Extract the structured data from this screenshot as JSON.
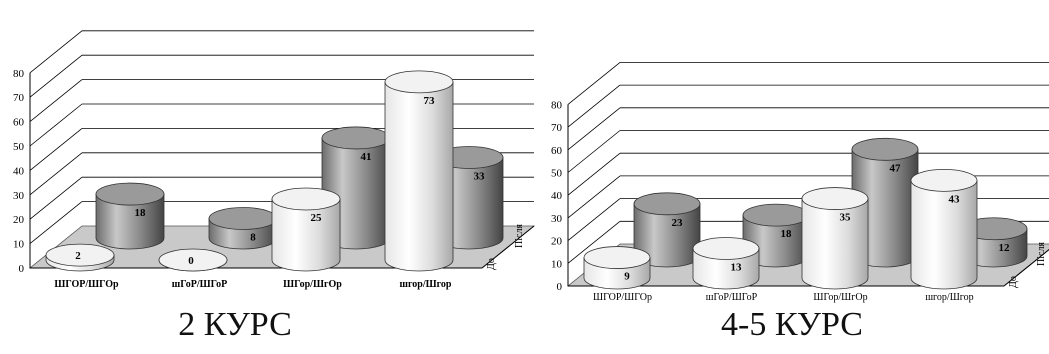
{
  "chart_data": [
    {
      "type": "bar",
      "style": "3d-cylinder",
      "caption": "2 КУРС",
      "categories": [
        "ШГОР/ШГОр",
        "шГоР/ШГоР",
        "ШГор/ШгОр",
        "шгор/Шгор"
      ],
      "depth_labels": [
        "До",
        "Після"
      ],
      "series": [
        {
          "name": "До",
          "values": [
            2,
            0,
            25,
            73
          ]
        },
        {
          "name": "Після",
          "values": [
            18,
            8,
            41,
            33
          ]
        }
      ],
      "yticks": [
        "0",
        "10",
        "20",
        "30",
        "40",
        "50",
        "60",
        "70",
        "80"
      ],
      "ylim": [
        0,
        80
      ],
      "grid": true
    },
    {
      "type": "bar",
      "style": "3d-cylinder",
      "caption": "4-5 КУРС",
      "categories": [
        "ШГОР/ШГОр",
        "шГоР/ШГоР",
        "ШГор/ШгОр",
        "шгор/Шгор"
      ],
      "depth_labels": [
        "До",
        "Після"
      ],
      "series": [
        {
          "name": "До",
          "values": [
            9,
            13,
            35,
            43
          ]
        },
        {
          "name": "Після",
          "values": [
            23,
            18,
            47,
            12
          ]
        }
      ],
      "yticks": [
        "0",
        "10",
        "20",
        "30",
        "40",
        "50",
        "60",
        "70",
        "80"
      ],
      "ylim": [
        0,
        80
      ],
      "grid": true
    }
  ]
}
